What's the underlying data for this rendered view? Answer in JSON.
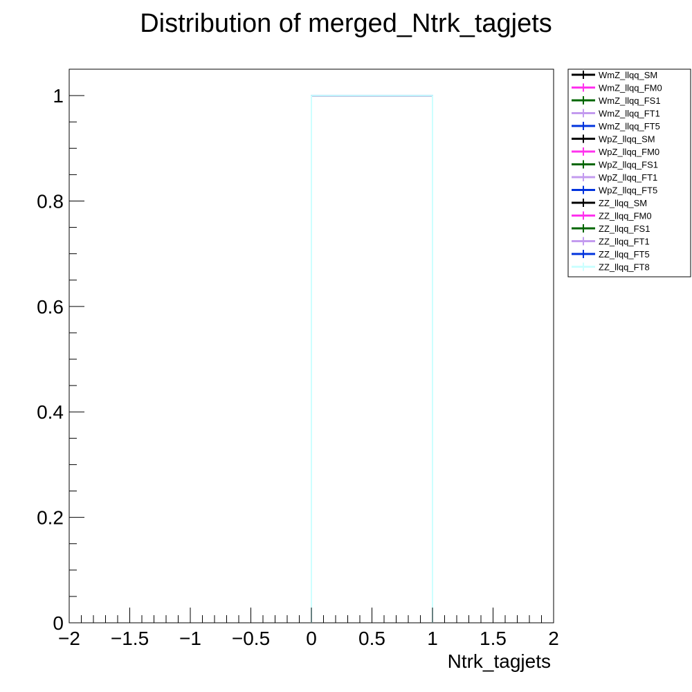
{
  "chart_data": {
    "type": "line",
    "title": "Distribution of merged_Ntrk_tagjets",
    "xlabel": "Ntrk_tagjets",
    "ylabel": "",
    "xlim": [
      -2,
      2
    ],
    "ylim": [
      0,
      1.05
    ],
    "x_ticks": [
      -2,
      -1.5,
      -1,
      -0.5,
      0,
      0.5,
      1,
      1.5,
      2
    ],
    "x_tick_labels": [
      "−2",
      "−1.5",
      "−1",
      "−0.5",
      "0",
      "0.5",
      "1",
      "1.5",
      "2"
    ],
    "y_ticks": [
      0,
      0.2,
      0.4,
      0.6,
      0.8,
      1
    ],
    "y_tick_labels": [
      "0",
      "0.2",
      "0.4",
      "0.6",
      "0.8",
      "1"
    ],
    "grid": false,
    "legend_position": "outside-top-right",
    "series": [
      {
        "name": "WmZ_llqq_SM",
        "color": "#000000",
        "bins": [
          [
            0,
            1,
            1.0
          ]
        ]
      },
      {
        "name": "WmZ_llqq_FM0",
        "color": "#ff33ee",
        "bins": [
          [
            0,
            1,
            1.0
          ]
        ]
      },
      {
        "name": "WmZ_llqq_FS1",
        "color": "#006600",
        "bins": [
          [
            0,
            1,
            1.0
          ]
        ]
      },
      {
        "name": "WmZ_llqq_FT1",
        "color": "#c39bef",
        "bins": [
          [
            0,
            1,
            1.0
          ]
        ]
      },
      {
        "name": "WmZ_llqq_FT5",
        "color": "#0033dd",
        "bins": [
          [
            0,
            1,
            1.0
          ]
        ]
      },
      {
        "name": "WpZ_llqq_SM",
        "color": "#000000",
        "bins": [
          [
            0,
            1,
            1.0
          ]
        ]
      },
      {
        "name": "WpZ_llqq_FM0",
        "color": "#ff33ee",
        "bins": [
          [
            0,
            1,
            1.0
          ]
        ]
      },
      {
        "name": "WpZ_llqq_FS1",
        "color": "#006600",
        "bins": [
          [
            0,
            1,
            1.0
          ]
        ]
      },
      {
        "name": "WpZ_llqq_FT1",
        "color": "#c39bef",
        "bins": [
          [
            0,
            1,
            1.0
          ]
        ]
      },
      {
        "name": "WpZ_llqq_FT5",
        "color": "#0033dd",
        "bins": [
          [
            0,
            1,
            1.0
          ]
        ]
      },
      {
        "name": "ZZ_llqq_SM",
        "color": "#000000",
        "bins": [
          [
            0,
            1,
            1.0
          ]
        ]
      },
      {
        "name": "ZZ_llqq_FM0",
        "color": "#ff33ee",
        "bins": [
          [
            0,
            1,
            1.0
          ]
        ]
      },
      {
        "name": "ZZ_llqq_FS1",
        "color": "#006600",
        "bins": [
          [
            0,
            1,
            1.0
          ]
        ]
      },
      {
        "name": "ZZ_llqq_FT1",
        "color": "#c39bef",
        "bins": [
          [
            0,
            1,
            1.0
          ]
        ]
      },
      {
        "name": "ZZ_llqq_FT5",
        "color": "#0033dd",
        "bins": [
          [
            0,
            1,
            1.0
          ]
        ]
      },
      {
        "name": "ZZ_llqq_FT8",
        "color": "#ccffff",
        "bins": [
          [
            0,
            1,
            1.0
          ]
        ]
      }
    ]
  }
}
